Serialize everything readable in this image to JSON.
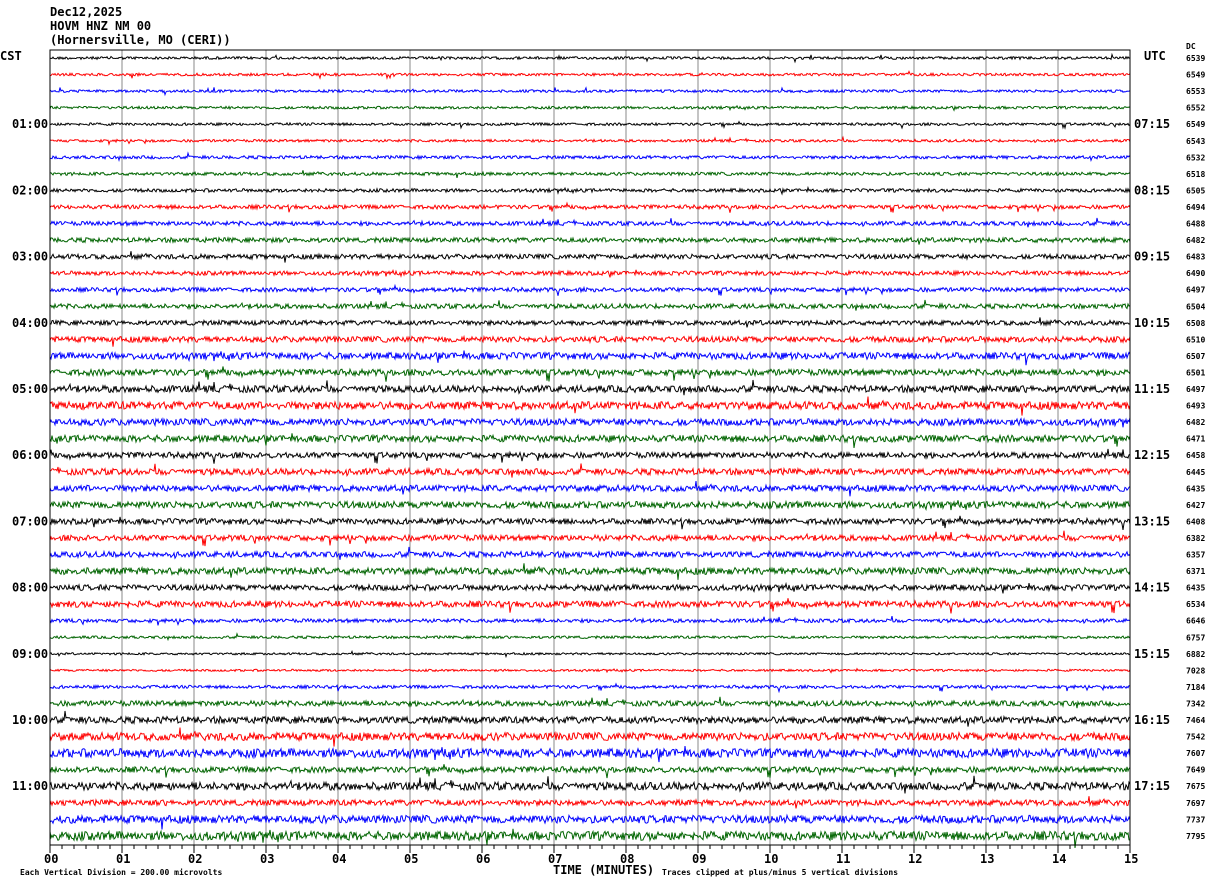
{
  "header": {
    "date": "Dec12,2025",
    "station": "HOVM HNZ NM 00",
    "location": "(Hornersville, MO (CERI))"
  },
  "chart_data": {
    "type": "line",
    "title": "",
    "left_timezone": "CST",
    "right_timezone": "UTC",
    "dc_label": "DC",
    "xlabel": "TIME (MINUTES)",
    "x_ticks": [
      "00",
      "01",
      "02",
      "03",
      "04",
      "05",
      "06",
      "07",
      "08",
      "09",
      "10",
      "11",
      "12",
      "13",
      "14",
      "15"
    ],
    "xlim": [
      0,
      15
    ],
    "grid": "vertical every minute",
    "left_time_labels": [
      "01:00",
      "02:00",
      "03:00",
      "04:00",
      "05:00",
      "06:00",
      "07:00",
      "08:00",
      "09:00",
      "10:00",
      "11:00"
    ],
    "right_time_labels": [
      "07:15",
      "08:15",
      "09:15",
      "10:15",
      "11:15",
      "12:15",
      "13:15",
      "14:15",
      "15:15",
      "16:15",
      "17:15"
    ],
    "trace_colors": [
      "#000000",
      "#ff0000",
      "#0000ff",
      "#006400"
    ],
    "dc_values": [
      "6539",
      "6549",
      "6553",
      "6552",
      "6549",
      "6543",
      "6532",
      "6518",
      "6505",
      "6494",
      "6488",
      "6482",
      "6483",
      "6490",
      "6497",
      "6504",
      "6508",
      "6510",
      "6507",
      "6501",
      "6497",
      "6493",
      "6482",
      "6471",
      "6458",
      "6445",
      "6435",
      "6427",
      "6408",
      "6382",
      "6357",
      "6371",
      "6435",
      "6534",
      "6646",
      "6757",
      "6882",
      "7028",
      "7184",
      "7342",
      "7464",
      "7542",
      "7607",
      "7649",
      "7675",
      "7697",
      "7737",
      "7795"
    ],
    "relative_noise_amplitude": [
      1,
      1,
      1,
      1,
      1,
      1,
      1.2,
      1.2,
      1.3,
      1.5,
      1.6,
      1.8,
      1.8,
      1.6,
      1.6,
      1.8,
      1.8,
      2.2,
      2.6,
      2.4,
      2.6,
      3,
      2.6,
      2.6,
      2.2,
      2.4,
      2.4,
      2.6,
      2.2,
      2.2,
      2.2,
      2.6,
      2.2,
      2.4,
      1.4,
      1,
      0.8,
      0.8,
      1.2,
      2,
      2.6,
      3,
      3.4,
      2.2,
      3,
      2.2,
      3,
      3.4
    ],
    "scale_note": "Each Vertical Division =  200.00 microvolts",
    "clip_note": "Traces clipped at plus/minus 5 vertical divisions"
  }
}
